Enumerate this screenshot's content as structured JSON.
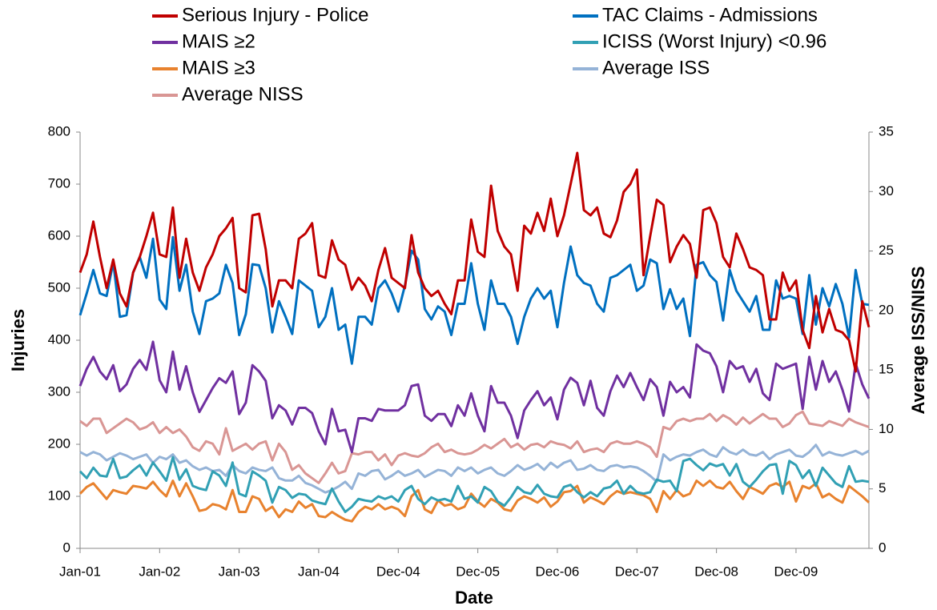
{
  "chart_data": {
    "type": "line",
    "x_label": "Date",
    "y_label": "Injuries",
    "y2_label": "Average ISS/NISS",
    "categories": [
      "Jan-01",
      null,
      null,
      null,
      null,
      null,
      null,
      null,
      null,
      null,
      null,
      null,
      "Jan-02",
      null,
      null,
      null,
      null,
      null,
      null,
      null,
      null,
      null,
      null,
      null,
      "Jan-03",
      null,
      null,
      null,
      null,
      null,
      null,
      null,
      null,
      null,
      null,
      null,
      "Jan-04",
      null,
      null,
      null,
      null,
      null,
      null,
      null,
      null,
      null,
      null,
      null,
      "Dec-04",
      null,
      null,
      null,
      null,
      null,
      null,
      null,
      null,
      null,
      null,
      null,
      "Dec-05",
      null,
      null,
      null,
      null,
      null,
      null,
      null,
      null,
      null,
      null,
      null,
      "Dec-06",
      null,
      null,
      null,
      null,
      null,
      null,
      null,
      null,
      null,
      null,
      null,
      "Dec-07",
      null,
      null,
      null,
      null,
      null,
      null,
      null,
      null,
      null,
      null,
      null,
      "Dec-08",
      null,
      null,
      null,
      null,
      null,
      null,
      null,
      null,
      null,
      null,
      null,
      "Dec-09",
      null,
      null,
      null,
      null,
      null,
      null,
      null,
      null,
      null,
      null,
      null
    ],
    "ylim": [
      0,
      800
    ],
    "yticks": [
      0,
      100,
      200,
      300,
      400,
      500,
      600,
      700,
      800
    ],
    "y2lim": [
      0,
      35
    ],
    "y2ticks": [
      0,
      5,
      10,
      15,
      20,
      25,
      30,
      35
    ],
    "grid": false,
    "legend": "top",
    "series": [
      {
        "name": "Serious Injury - Police",
        "color": "#c00000",
        "values": [
          530,
          565,
          628,
          560,
          500,
          555,
          490,
          465,
          530,
          560,
          600,
          645,
          565,
          560,
          655,
          520,
          595,
          530,
          495,
          540,
          565,
          600,
          615,
          635,
          500,
          492,
          640,
          643,
          575,
          465,
          515,
          515,
          500,
          595,
          605,
          625,
          525,
          520,
          592,
          555,
          545,
          497,
          520,
          505,
          475,
          535,
          577,
          520,
          510,
          500,
          602,
          530,
          500,
          485,
          495,
          470,
          450,
          515,
          515,
          632,
          570,
          560,
          697,
          610,
          580,
          565,
          495,
          620,
          605,
          645,
          610,
          672,
          600,
          640,
          700,
          760,
          650,
          640,
          655,
          605,
          598,
          630,
          685,
          700,
          728,
          525,
          600,
          670,
          660,
          550,
          580,
          602,
          585,
          520,
          650,
          655,
          625,
          560,
          540,
          605,
          575,
          540,
          535,
          525,
          440,
          440,
          530,
          495,
          515,
          420,
          385,
          485,
          415,
          460,
          420,
          415,
          400,
          340,
          475,
          425
        ]
      },
      {
        "name": "TAC Claims - Admissions",
        "color": "#0070c0",
        "values": [
          448,
          490,
          535,
          490,
          485,
          550,
          445,
          448,
          530,
          560,
          520,
          595,
          478,
          460,
          598,
          495,
          545,
          455,
          412,
          475,
          480,
          490,
          545,
          510,
          410,
          450,
          546,
          544,
          500,
          415,
          475,
          445,
          412,
          515,
          505,
          495,
          425,
          445,
          500,
          420,
          430,
          355,
          445,
          445,
          430,
          500,
          515,
          490,
          455,
          505,
          572,
          555,
          460,
          440,
          465,
          455,
          410,
          470,
          470,
          548,
          470,
          420,
          515,
          470,
          470,
          445,
          393,
          445,
          480,
          500,
          480,
          495,
          425,
          510,
          580,
          525,
          510,
          505,
          470,
          455,
          520,
          525,
          535,
          545,
          495,
          505,
          555,
          548,
          460,
          498,
          460,
          480,
          408,
          545,
          550,
          525,
          512,
          438,
          535,
          495,
          475,
          455,
          485,
          420,
          420,
          515,
          480,
          485,
          480,
          412,
          525,
          430,
          500,
          465,
          508,
          470,
          405,
          535,
          470,
          468
        ]
      },
      {
        "name": "MAIS ≥2",
        "color": "#7030a0",
        "values": [
          312,
          345,
          368,
          340,
          325,
          352,
          302,
          315,
          345,
          362,
          343,
          397,
          323,
          300,
          378,
          305,
          350,
          300,
          262,
          285,
          308,
          327,
          318,
          340,
          258,
          280,
          352,
          340,
          322,
          250,
          275,
          265,
          238,
          270,
          270,
          260,
          225,
          200,
          268,
          225,
          228,
          185,
          250,
          250,
          245,
          268,
          265,
          265,
          265,
          275,
          312,
          315,
          255,
          245,
          258,
          258,
          235,
          275,
          255,
          298,
          255,
          225,
          312,
          280,
          280,
          255,
          212,
          265,
          285,
          302,
          275,
          290,
          248,
          305,
          328,
          318,
          275,
          322,
          270,
          255,
          302,
          332,
          310,
          337,
          310,
          285,
          325,
          310,
          255,
          320,
          300,
          310,
          290,
          392,
          380,
          375,
          350,
          300,
          360,
          345,
          350,
          320,
          345,
          298,
          285,
          355,
          345,
          350,
          355,
          268,
          368,
          305,
          360,
          320,
          340,
          305,
          263,
          355,
          315,
          288
        ]
      },
      {
        "name": "ICISS (Worst Injury) <0.96",
        "color": "#31a0b4",
        "values": [
          148,
          135,
          155,
          140,
          138,
          172,
          135,
          138,
          150,
          160,
          140,
          165,
          148,
          130,
          175,
          132,
          152,
          120,
          115,
          112,
          148,
          140,
          120,
          165,
          105,
          100,
          148,
          140,
          130,
          88,
          118,
          112,
          97,
          105,
          103,
          92,
          88,
          85,
          115,
          90,
          70,
          80,
          95,
          92,
          90,
          100,
          95,
          100,
          90,
          112,
          120,
          95,
          85,
          98,
          92,
          95,
          90,
          120,
          95,
          100,
          88,
          118,
          110,
          90,
          82,
          98,
          118,
          108,
          105,
          122,
          105,
          100,
          98,
          118,
          122,
          108,
          98,
          108,
          100,
          115,
          118,
          130,
          105,
          120,
          108,
          105,
          108,
          132,
          128,
          130,
          110,
          168,
          172,
          160,
          150,
          163,
          158,
          162,
          140,
          162,
          128,
          118,
          132,
          148,
          160,
          162,
          105,
          168,
          160,
          135,
          150,
          120,
          155,
          140,
          125,
          118,
          158,
          128,
          130,
          128
        ]
      },
      {
        "name": "MAIS ≥3",
        "color": "#e8822e",
        "values": [
          105,
          118,
          125,
          110,
          95,
          112,
          108,
          105,
          120,
          118,
          115,
          128,
          112,
          100,
          130,
          100,
          125,
          100,
          72,
          75,
          85,
          82,
          75,
          112,
          70,
          70,
          100,
          95,
          72,
          80,
          60,
          75,
          70,
          90,
          78,
          85,
          62,
          60,
          70,
          62,
          55,
          52,
          70,
          80,
          75,
          85,
          75,
          80,
          75,
          62,
          100,
          112,
          75,
          68,
          92,
          82,
          85,
          75,
          80,
          105,
          90,
          80,
          95,
          88,
          75,
          72,
          92,
          100,
          95,
          88,
          98,
          80,
          90,
          108,
          110,
          120,
          88,
          98,
          92,
          85,
          100,
          110,
          105,
          108,
          105,
          102,
          95,
          70,
          110,
          95,
          112,
          100,
          105,
          130,
          120,
          130,
          118,
          115,
          128,
          110,
          95,
          118,
          112,
          105,
          120,
          125,
          118,
          128,
          90,
          120,
          115,
          125,
          98,
          105,
          95,
          88,
          120,
          110,
          100,
          88
        ]
      },
      {
        "name": "Average ISS",
        "color": "#95b3d7",
        "axis": "y2",
        "values": [
          8.1,
          7.8,
          8.1,
          7.9,
          7.4,
          7.7,
          8.0,
          7.8,
          7.5,
          7.7,
          7.9,
          7.2,
          7.7,
          7.5,
          7.9,
          7.2,
          7.4,
          6.9,
          6.6,
          6.8,
          6.5,
          6.6,
          6.1,
          7.0,
          6.5,
          6.3,
          6.8,
          6.6,
          6.5,
          6.8,
          5.9,
          5.7,
          5.7,
          6.1,
          5.5,
          5.3,
          5.0,
          4.7,
          4.9,
          5.2,
          5.6,
          5.0,
          6.3,
          6.1,
          6.5,
          6.6,
          5.8,
          6.1,
          6.5,
          6.1,
          6.3,
          6.6,
          6.0,
          6.3,
          6.6,
          6.5,
          6.1,
          6.8,
          6.5,
          6.8,
          6.3,
          6.6,
          6.8,
          6.3,
          6.1,
          6.5,
          7.0,
          6.6,
          6.8,
          7.1,
          6.6,
          7.2,
          6.8,
          7.2,
          7.4,
          6.6,
          6.7,
          7.0,
          6.6,
          6.5,
          6.9,
          7.0,
          6.8,
          6.9,
          6.8,
          6.5,
          6.1,
          5.6,
          7.9,
          7.4,
          7.7,
          7.9,
          7.8,
          8.1,
          8.3,
          7.9,
          7.7,
          8.5,
          8.1,
          7.9,
          8.3,
          7.9,
          7.8,
          8.1,
          7.5,
          7.9,
          8.1,
          8.3,
          7.8,
          7.7,
          8.1,
          8.7,
          7.8,
          8.1,
          7.9,
          7.8,
          8.0,
          8.2,
          7.9,
          8.2
        ]
      },
      {
        "name": "Average NISS",
        "color": "#d99694",
        "axis": "y2",
        "values": [
          10.7,
          10.3,
          10.9,
          10.9,
          9.7,
          10.1,
          10.5,
          10.9,
          10.6,
          10.0,
          10.2,
          10.6,
          9.7,
          10.2,
          9.7,
          10.0,
          9.4,
          8.5,
          8.2,
          9.0,
          8.8,
          7.9,
          10.1,
          8.2,
          8.5,
          8.8,
          8.3,
          8.8,
          9.0,
          7.4,
          8.8,
          8.1,
          6.6,
          7.0,
          6.3,
          5.9,
          5.5,
          6.3,
          7.2,
          6.3,
          6.5,
          8.0,
          7.9,
          8.1,
          8.1,
          7.4,
          7.9,
          7.0,
          7.8,
          8.0,
          7.8,
          7.7,
          8.0,
          8.5,
          8.8,
          8.1,
          8.3,
          8.0,
          7.9,
          8.0,
          8.3,
          8.7,
          8.4,
          8.8,
          9.2,
          8.5,
          8.8,
          8.3,
          8.7,
          8.8,
          8.5,
          9.0,
          8.8,
          8.7,
          8.4,
          9.0,
          8.1,
          8.3,
          8.4,
          8.1,
          8.8,
          9.0,
          8.8,
          8.8,
          9.0,
          8.8,
          8.5,
          7.7,
          10.2,
          10.0,
          10.7,
          10.9,
          10.7,
          10.9,
          10.9,
          11.3,
          10.7,
          11.2,
          10.9,
          10.4,
          11.0,
          10.5,
          10.9,
          11.3,
          10.9,
          10.9,
          10.2,
          10.5,
          11.2,
          11.5,
          10.5,
          10.4,
          10.3,
          10.7,
          10.5,
          10.3,
          10.9,
          10.6,
          10.4,
          10.2
        ]
      }
    ]
  }
}
